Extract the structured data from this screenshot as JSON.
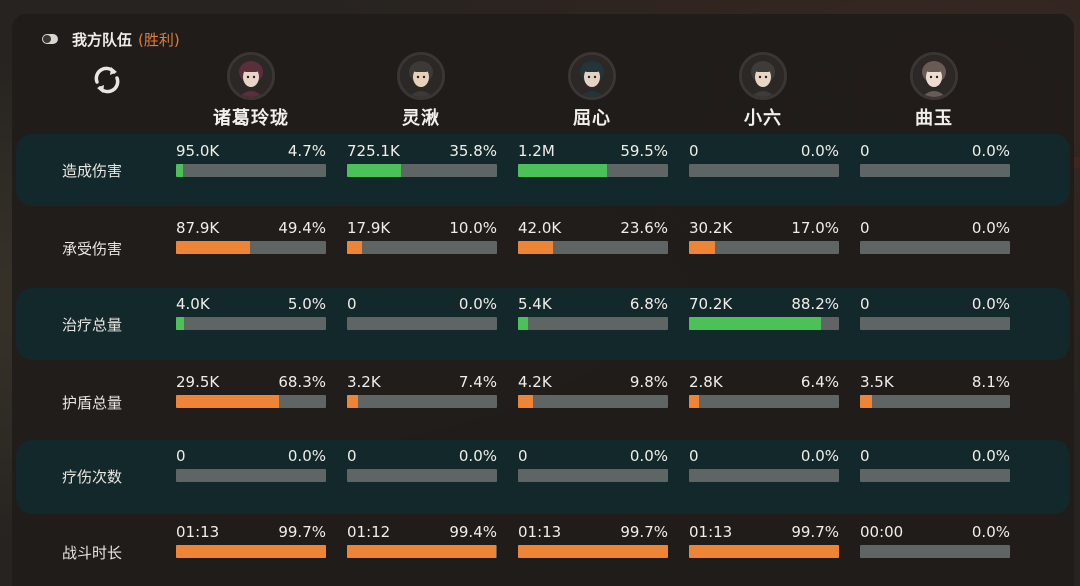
{
  "header": {
    "title": "我方队伍",
    "result": "(胜利)"
  },
  "icons": {
    "toggle": "toggle-icon",
    "refresh": "refresh-icon"
  },
  "colors": {
    "band": "#13282a",
    "green": "#4cc158",
    "orange": "#ee8435",
    "bar_bg": "#5f6465",
    "result": "#e07c3a"
  },
  "heroes": [
    {
      "name": "诸葛玲珑"
    },
    {
      "name": "灵湫"
    },
    {
      "name": "屈心"
    },
    {
      "name": "小六"
    },
    {
      "name": "曲玉"
    }
  ],
  "rows": [
    {
      "label": "造成伤害",
      "color": "green",
      "banded": true,
      "cells": [
        {
          "value": "95.0K",
          "pct_text": "4.7%",
          "pct": 4.7
        },
        {
          "value": "725.1K",
          "pct_text": "35.8%",
          "pct": 35.8
        },
        {
          "value": "1.2M",
          "pct_text": "59.5%",
          "pct": 59.5
        },
        {
          "value": "0",
          "pct_text": "0.0%",
          "pct": 0
        },
        {
          "value": "0",
          "pct_text": "0.0%",
          "pct": 0
        }
      ]
    },
    {
      "label": "承受伤害",
      "color": "orange",
      "banded": false,
      "cells": [
        {
          "value": "87.9K",
          "pct_text": "49.4%",
          "pct": 49.4
        },
        {
          "value": "17.9K",
          "pct_text": "10.0%",
          "pct": 10.0
        },
        {
          "value": "42.0K",
          "pct_text": "23.6%",
          "pct": 23.6
        },
        {
          "value": "30.2K",
          "pct_text": "17.0%",
          "pct": 17.0
        },
        {
          "value": "0",
          "pct_text": "0.0%",
          "pct": 0
        }
      ]
    },
    {
      "label": "治疗总量",
      "color": "green",
      "banded": true,
      "cells": [
        {
          "value": "4.0K",
          "pct_text": "5.0%",
          "pct": 5.0
        },
        {
          "value": "0",
          "pct_text": "0.0%",
          "pct": 0
        },
        {
          "value": "5.4K",
          "pct_text": "6.8%",
          "pct": 6.8
        },
        {
          "value": "70.2K",
          "pct_text": "88.2%",
          "pct": 88.2
        },
        {
          "value": "0",
          "pct_text": "0.0%",
          "pct": 0
        }
      ]
    },
    {
      "label": "护盾总量",
      "color": "orange",
      "banded": false,
      "cells": [
        {
          "value": "29.5K",
          "pct_text": "68.3%",
          "pct": 68.3
        },
        {
          "value": "3.2K",
          "pct_text": "7.4%",
          "pct": 7.4
        },
        {
          "value": "4.2K",
          "pct_text": "9.8%",
          "pct": 9.8
        },
        {
          "value": "2.8K",
          "pct_text": "6.4%",
          "pct": 6.4
        },
        {
          "value": "3.5K",
          "pct_text": "8.1%",
          "pct": 8.1
        }
      ]
    },
    {
      "label": "疗伤次数",
      "color": "green",
      "banded": true,
      "cells": [
        {
          "value": "0",
          "pct_text": "0.0%",
          "pct": 0
        },
        {
          "value": "0",
          "pct_text": "0.0%",
          "pct": 0
        },
        {
          "value": "0",
          "pct_text": "0.0%",
          "pct": 0
        },
        {
          "value": "0",
          "pct_text": "0.0%",
          "pct": 0
        },
        {
          "value": "0",
          "pct_text": "0.0%",
          "pct": 0
        }
      ]
    },
    {
      "label": "战斗时长",
      "color": "orange",
      "banded": false,
      "cells": [
        {
          "value": "01:13",
          "pct_text": "99.7%",
          "pct": 99.7
        },
        {
          "value": "01:12",
          "pct_text": "99.4%",
          "pct": 99.4
        },
        {
          "value": "01:13",
          "pct_text": "99.7%",
          "pct": 99.7
        },
        {
          "value": "01:13",
          "pct_text": "99.7%",
          "pct": 99.7
        },
        {
          "value": "00:00",
          "pct_text": "0.0%",
          "pct": 0
        }
      ]
    }
  ]
}
